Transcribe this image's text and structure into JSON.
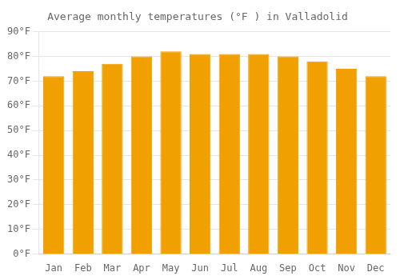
{
  "chart_data": {
    "type": "bar",
    "title": "Average monthly temperatures (°F ) in Valladolid",
    "categories": [
      "Jan",
      "Feb",
      "Mar",
      "Apr",
      "May",
      "Jun",
      "Jul",
      "Aug",
      "Sep",
      "Oct",
      "Nov",
      "Dec"
    ],
    "values": [
      72,
      74,
      77,
      80,
      82,
      81,
      81,
      81,
      80,
      78,
      75,
      72
    ],
    "color": "#F0A000",
    "ylim": [
      0,
      90
    ],
    "yticks": [
      {
        "value": 0,
        "label": "0°F"
      },
      {
        "value": 10,
        "label": "10°F"
      },
      {
        "value": 20,
        "label": "20°F"
      },
      {
        "value": 30,
        "label": "30°F"
      },
      {
        "value": 40,
        "label": "40°F"
      },
      {
        "value": 50,
        "label": "50°F"
      },
      {
        "value": 60,
        "label": "60°F"
      },
      {
        "value": 70,
        "label": "70°F"
      },
      {
        "value": 80,
        "label": "80°F"
      },
      {
        "value": 90,
        "label": "90°F"
      }
    ],
    "grid": true
  }
}
